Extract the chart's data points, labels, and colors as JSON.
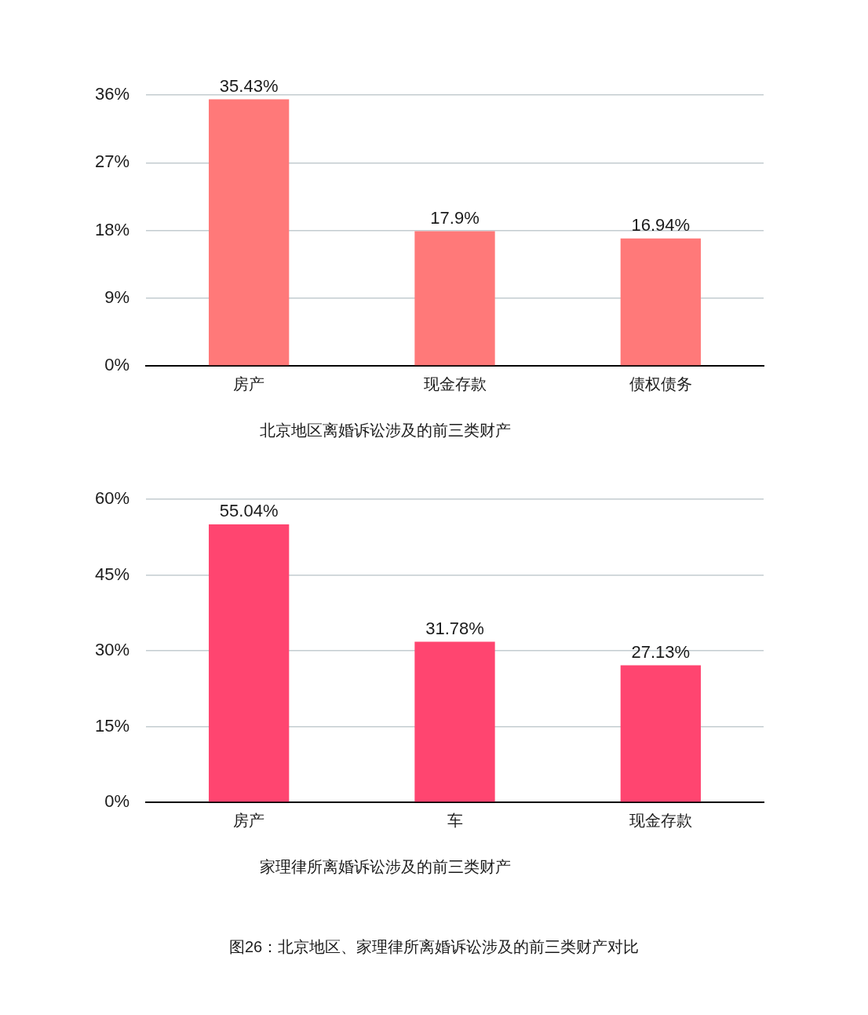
{
  "chart_data": [
    {
      "type": "bar",
      "title": "北京地区离婚诉讼涉及的前三类财产",
      "categories": [
        "房产",
        "现金存款",
        "债权债务"
      ],
      "values": [
        35.43,
        17.9,
        16.94
      ],
      "value_labels": [
        "35.43%",
        "17.9%",
        "16.94%"
      ],
      "color": "#ff7979",
      "ylim": [
        0,
        36
      ],
      "yticks": [
        {
          "value": 0,
          "label": "0%"
        },
        {
          "value": 9,
          "label": "9%"
        },
        {
          "value": 18,
          "label": "18%"
        },
        {
          "value": 27,
          "label": "27%"
        },
        {
          "value": 36,
          "label": "36%"
        }
      ],
      "grid": "y"
    },
    {
      "type": "bar",
      "title": "家理律所离婚诉讼涉及的前三类财产",
      "categories": [
        "房产",
        "车",
        "现金存款"
      ],
      "values": [
        55.04,
        31.78,
        27.13
      ],
      "value_labels": [
        "55.04%",
        "31.78%",
        "27.13%"
      ],
      "color": "#ff4570",
      "ylim": [
        0,
        60
      ],
      "yticks": [
        {
          "value": 0,
          "label": "0%"
        },
        {
          "value": 15,
          "label": "15%"
        },
        {
          "value": 30,
          "label": "30%"
        },
        {
          "value": 45,
          "label": "45%"
        },
        {
          "value": 60,
          "label": "60%"
        }
      ],
      "grid": "y",
      "annotations": [
        "图26：北京地区、家理律所离婚诉讼涉及的前三类财产对比"
      ]
    }
  ]
}
